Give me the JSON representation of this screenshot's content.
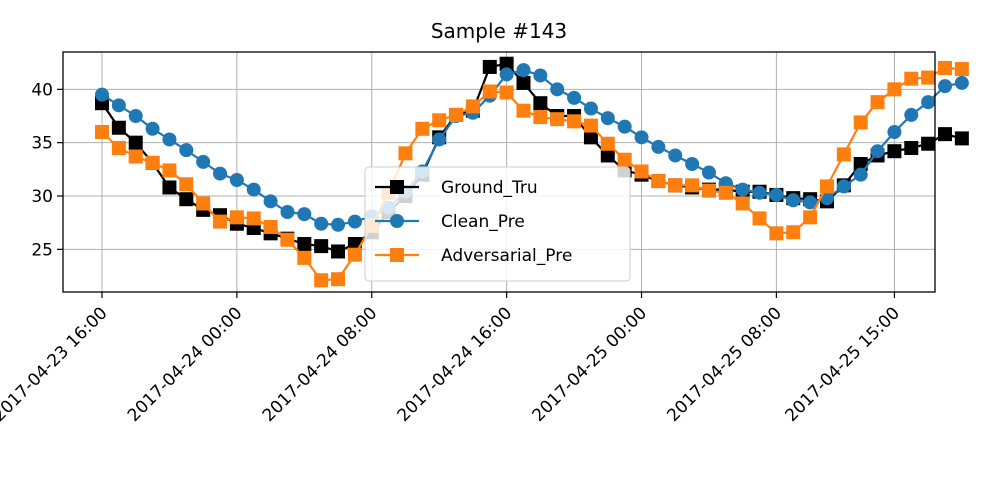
{
  "chart_data": {
    "type": "line",
    "title": "Sample #143",
    "xlabel": "",
    "ylabel": "",
    "x_ticks": [
      "2017-04-23 16:00",
      "2017-04-24 00:00",
      "2017-04-24 08:00",
      "2017-04-24 16:00",
      "2017-04-25 00:00",
      "2017-04-25 08:00",
      "2017-04-25 15:00"
    ],
    "y_ticks": [
      25,
      30,
      35,
      40
    ],
    "ylim": [
      21,
      43.5
    ],
    "grid": true,
    "legend_position": "center",
    "x_start": "2017-04-23 16:00",
    "x_step_hours": 1,
    "series": [
      {
        "name": "Ground_Tru",
        "color": "#000000",
        "marker": "square",
        "values": [
          38.7,
          36.4,
          35.0,
          33.1,
          30.8,
          29.7,
          28.7,
          28.2,
          27.4,
          27.0,
          26.5,
          26.0,
          25.5,
          25.3,
          24.8,
          25.5,
          26.6,
          28.5,
          30.0,
          32.0,
          35.5,
          37.6,
          38.0,
          42.1,
          42.4,
          40.6,
          38.7,
          37.5,
          37.5,
          35.5,
          33.8,
          32.4,
          32.0,
          31.4,
          31.0,
          30.8,
          30.6,
          30.6,
          30.4,
          30.4,
          30.1,
          29.8,
          29.7,
          29.5,
          31.0,
          33.0,
          33.8,
          34.2,
          34.5,
          34.9,
          35.8,
          35.4
        ]
      },
      {
        "name": "Clean_Pre",
        "color": "#1f77b4",
        "marker": "circle",
        "values": [
          39.5,
          38.5,
          37.5,
          36.3,
          35.3,
          34.3,
          33.2,
          32.1,
          31.5,
          30.6,
          29.5,
          28.5,
          28.3,
          27.4,
          27.3,
          27.6,
          28.1,
          28.9,
          30.4,
          32.3,
          35.3,
          37.5,
          37.8,
          39.4,
          41.4,
          41.8,
          41.3,
          40.0,
          39.2,
          38.2,
          37.3,
          36.5,
          35.5,
          34.6,
          33.8,
          33.0,
          32.2,
          31.2,
          30.6,
          30.3,
          30.1,
          29.6,
          29.4,
          29.8,
          30.9,
          32.0,
          34.2,
          36.0,
          37.6,
          38.8,
          40.3,
          40.6
        ]
      },
      {
        "name": "Adversarial_Pre",
        "color": "#ff7f0e",
        "marker": "square",
        "values": [
          36.0,
          34.5,
          33.7,
          33.1,
          32.4,
          31.1,
          29.3,
          27.6,
          28.0,
          27.9,
          27.1,
          25.9,
          24.2,
          22.1,
          22.2,
          24.5,
          27.2,
          30.3,
          34.0,
          36.3,
          37.1,
          37.6,
          38.4,
          39.8,
          39.7,
          38.0,
          37.4,
          37.2,
          37.0,
          36.6,
          34.9,
          33.4,
          32.3,
          31.4,
          31.0,
          31.0,
          30.5,
          30.3,
          29.3,
          27.9,
          26.5,
          26.6,
          28.0,
          30.9,
          33.9,
          36.9,
          38.8,
          40.0,
          41.0,
          41.1,
          42.0,
          41.9
        ]
      }
    ]
  }
}
